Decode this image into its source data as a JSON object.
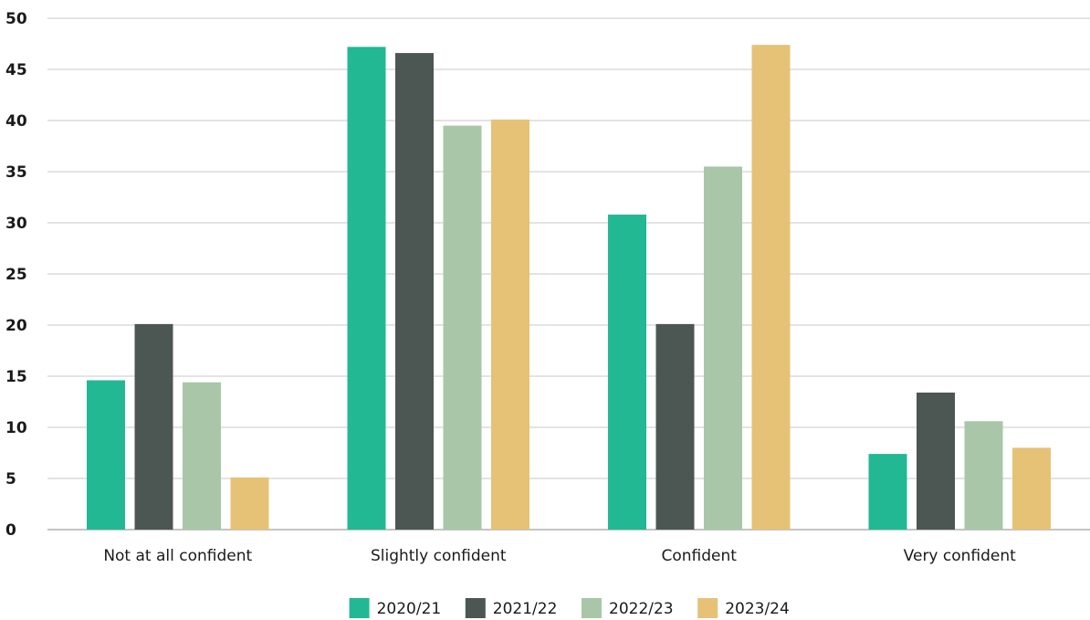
{
  "chart_data": {
    "type": "bar",
    "categories": [
      "Not at all confident",
      "Slightly confident",
      "Confident",
      "Very confident"
    ],
    "series": [
      {
        "name": "2020/21",
        "color": "#22b894",
        "values": [
          14.6,
          47.2,
          30.8,
          7.4
        ]
      },
      {
        "name": "2021/22",
        "color": "#4c5652",
        "values": [
          20.1,
          46.6,
          20.1,
          13.4
        ]
      },
      {
        "name": "2022/23",
        "color": "#a9c6a9",
        "values": [
          14.4,
          39.5,
          35.5,
          10.6
        ]
      },
      {
        "name": "2023/24",
        "color": "#e6c277",
        "values": [
          5.1,
          40.1,
          47.4,
          8.0
        ]
      }
    ],
    "title": "",
    "xlabel": "",
    "ylabel": "",
    "ylim": [
      0,
      50
    ],
    "yticks": [
      "0",
      "5",
      "10",
      "15",
      "20",
      "25",
      "30",
      "35",
      "40",
      "45",
      "50"
    ],
    "grid": true,
    "legend_position": "bottom-center"
  }
}
